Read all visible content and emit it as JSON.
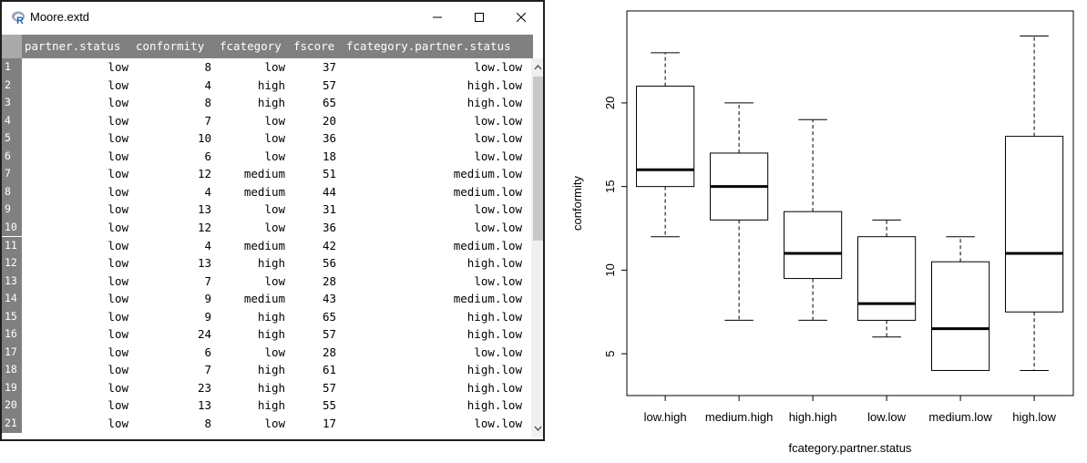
{
  "window": {
    "title": "Moore.extd",
    "icon": "r-logo-icon"
  },
  "table": {
    "columns": [
      "partner.status",
      "conformity",
      "fcategory",
      "fscore",
      "fcategory.partner.status"
    ],
    "rows": [
      [
        "1",
        "low",
        "8",
        "low",
        "37",
        "low.low"
      ],
      [
        "2",
        "low",
        "4",
        "high",
        "57",
        "high.low"
      ],
      [
        "3",
        "low",
        "8",
        "high",
        "65",
        "high.low"
      ],
      [
        "4",
        "low",
        "7",
        "low",
        "20",
        "low.low"
      ],
      [
        "5",
        "low",
        "10",
        "low",
        "36",
        "low.low"
      ],
      [
        "6",
        "low",
        "6",
        "low",
        "18",
        "low.low"
      ],
      [
        "7",
        "low",
        "12",
        "medium",
        "51",
        "medium.low"
      ],
      [
        "8",
        "low",
        "4",
        "medium",
        "44",
        "medium.low"
      ],
      [
        "9",
        "low",
        "13",
        "low",
        "31",
        "low.low"
      ],
      [
        "10",
        "low",
        "12",
        "low",
        "36",
        "low.low"
      ],
      [
        "11",
        "low",
        "4",
        "medium",
        "42",
        "medium.low"
      ],
      [
        "12",
        "low",
        "13",
        "high",
        "56",
        "high.low"
      ],
      [
        "13",
        "low",
        "7",
        "low",
        "28",
        "low.low"
      ],
      [
        "14",
        "low",
        "9",
        "medium",
        "43",
        "medium.low"
      ],
      [
        "15",
        "low",
        "9",
        "high",
        "65",
        "high.low"
      ],
      [
        "16",
        "low",
        "24",
        "high",
        "57",
        "high.low"
      ],
      [
        "17",
        "low",
        "6",
        "low",
        "28",
        "low.low"
      ],
      [
        "18",
        "low",
        "7",
        "high",
        "61",
        "high.low"
      ],
      [
        "19",
        "low",
        "23",
        "high",
        "57",
        "high.low"
      ],
      [
        "20",
        "low",
        "13",
        "high",
        "55",
        "high.low"
      ],
      [
        "21",
        "low",
        "8",
        "low",
        "17",
        "low.low"
      ]
    ]
  },
  "chart_data": {
    "type": "boxplot",
    "xlabel": "fcategory.partner.status",
    "ylabel": "conformity",
    "categories": [
      "low.high",
      "medium.high",
      "high.high",
      "low.low",
      "medium.low",
      "high.low"
    ],
    "boxes": [
      {
        "whisker_low": 12,
        "q1": 15,
        "median": 16,
        "q3": 21,
        "whisker_high": 23
      },
      {
        "whisker_low": 7,
        "q1": 13,
        "median": 15,
        "q3": 17,
        "whisker_high": 20
      },
      {
        "whisker_low": 7,
        "q1": 9.5,
        "median": 11,
        "q3": 13.5,
        "whisker_high": 19
      },
      {
        "whisker_low": 6,
        "q1": 7,
        "median": 8,
        "q3": 12,
        "whisker_high": 13
      },
      {
        "whisker_low": 4,
        "q1": 4,
        "median": 6.5,
        "q3": 10.5,
        "whisker_high": 12
      },
      {
        "whisker_low": 4,
        "q1": 7.5,
        "median": 11,
        "q3": 18,
        "whisker_high": 24
      }
    ],
    "yticks": [
      "5",
      "10",
      "15",
      "20"
    ],
    "ylim": [
      2.5,
      25.5
    ],
    "grid": false,
    "legend": "none"
  }
}
